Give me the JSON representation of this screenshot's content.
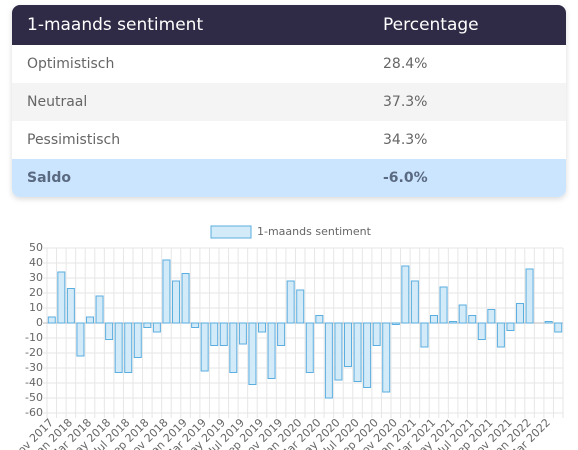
{
  "table": {
    "header": [
      "1-maands sentiment",
      "Percentage"
    ],
    "rows": [
      [
        "Optimistisch",
        "28.4%"
      ],
      [
        "Neutraal",
        "37.3%"
      ],
      [
        "Pessimistisch",
        "34.3%"
      ],
      [
        "Saldo",
        "-6.0%"
      ]
    ]
  },
  "chart_data": {
    "type": "bar",
    "categories": [
      "Nov 2017",
      null,
      "Jan 2018",
      null,
      "Mar 2018",
      null,
      "May 2018",
      null,
      "Jul 2018",
      null,
      "Sep 2018",
      null,
      "Nov 2018",
      null,
      "Jan 2019",
      null,
      "Mar 2019",
      null,
      "May 2019",
      null,
      "Jul 2019",
      null,
      "Sep 2019",
      null,
      "Nov 2019",
      null,
      "Jan 2020",
      null,
      "Mar 2020",
      null,
      "May 2020",
      null,
      "Jul 2020",
      null,
      "Sep 2020",
      null,
      "Nov 2020",
      null,
      "Jan 2021",
      null,
      "Mar 2021",
      null,
      "May 2021",
      null,
      "Jul 2021",
      null,
      "Sep 2021",
      null,
      "Nov 2021",
      null,
      "Jan 2022",
      null,
      "Mar 2022",
      null
    ],
    "series": [
      {
        "name": "1-maands sentiment",
        "color": "#5aaee0",
        "fill": "#d3ebf9",
        "values": [
          4,
          34,
          23,
          -22,
          4,
          18,
          -11,
          -33,
          -33,
          -23,
          -3,
          -6,
          42,
          28,
          33,
          -3,
          -32,
          -15,
          -15,
          -33,
          -14,
          -41,
          -6,
          -37,
          -15,
          28,
          22,
          -33,
          5,
          -50,
          -38,
          -29,
          -39,
          -43,
          -15,
          -46,
          -1,
          38,
          28,
          -16,
          5,
          24,
          1,
          12,
          5,
          -11,
          9,
          -16,
          -5,
          13,
          36,
          0,
          1,
          -6
        ]
      }
    ],
    "ylim": [
      -60,
      50
    ],
    "yticks": [
      -60,
      -50,
      -40,
      -30,
      -20,
      -10,
      0,
      10,
      20,
      30,
      40,
      50
    ],
    "grid": true
  }
}
